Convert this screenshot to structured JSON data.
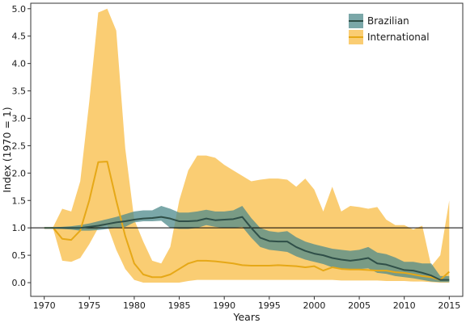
{
  "chart_data": {
    "type": "area",
    "xlabel": "Years",
    "ylabel": "Index (1970 = 1)",
    "xlim": [
      1968.5,
      2016.5
    ],
    "ylim": [
      -0.25,
      5.1
    ],
    "xticks": [
      1970,
      1975,
      1980,
      1985,
      1990,
      1995,
      2000,
      2005,
      2010,
      2015
    ],
    "yticks": [
      0.0,
      0.5,
      1.0,
      1.5,
      2.0,
      2.5,
      3.0,
      3.5,
      4.0,
      4.5,
      5.0
    ],
    "ytick_labels": [
      "0.0",
      "0.5",
      "1.0",
      "1.5",
      "2.0",
      "2.5",
      "3.0",
      "3.5",
      "4.0",
      "4.5",
      "5.0"
    ],
    "reference_line": 1.0,
    "grid": false,
    "legend_position": "top-right",
    "series": [
      {
        "name": "Brazilian",
        "line_color": "#2f4f48",
        "fill_color": "#4e8a8b",
        "x": [
          1970,
          1971,
          1972,
          1973,
          1974,
          1975,
          1976,
          1977,
          1978,
          1979,
          1980,
          1981,
          1982,
          1983,
          1984,
          1985,
          1986,
          1987,
          1988,
          1989,
          1990,
          1991,
          1992,
          1993,
          1994,
          1995,
          1996,
          1997,
          1998,
          1999,
          2000,
          2001,
          2002,
          2003,
          2004,
          2005,
          2006,
          2007,
          2008,
          2009,
          2010,
          2011,
          2012,
          2013,
          2014,
          2015
        ],
        "values": [
          1.0,
          1.0,
          1.0,
          1.0,
          1.0,
          1.02,
          1.04,
          1.07,
          1.1,
          1.12,
          1.15,
          1.17,
          1.18,
          1.2,
          1.17,
          1.12,
          1.12,
          1.13,
          1.17,
          1.14,
          1.15,
          1.16,
          1.2,
          1.0,
          0.82,
          0.76,
          0.75,
          0.75,
          0.65,
          0.58,
          0.53,
          0.5,
          0.45,
          0.42,
          0.4,
          0.42,
          0.45,
          0.35,
          0.33,
          0.28,
          0.23,
          0.22,
          0.18,
          0.13,
          0.05,
          0.05
        ],
        "lower": [
          1.0,
          0.99,
          0.98,
          0.97,
          0.95,
          0.95,
          0.96,
          0.98,
          1.0,
          1.02,
          1.1,
          1.12,
          1.12,
          1.13,
          1.0,
          0.98,
          0.98,
          1.0,
          1.05,
          1.02,
          1.0,
          1.0,
          1.02,
          0.82,
          0.65,
          0.6,
          0.58,
          0.56,
          0.48,
          0.42,
          0.38,
          0.34,
          0.28,
          0.26,
          0.24,
          0.25,
          0.26,
          0.18,
          0.16,
          0.12,
          0.1,
          0.08,
          0.05,
          0.02,
          0.01,
          0.01
        ],
        "upper": [
          1.0,
          1.01,
          1.02,
          1.03,
          1.05,
          1.08,
          1.12,
          1.16,
          1.2,
          1.25,
          1.3,
          1.32,
          1.32,
          1.4,
          1.35,
          1.28,
          1.28,
          1.3,
          1.33,
          1.3,
          1.3,
          1.32,
          1.4,
          1.18,
          1.0,
          0.94,
          0.92,
          0.94,
          0.83,
          0.75,
          0.7,
          0.66,
          0.62,
          0.6,
          0.58,
          0.6,
          0.65,
          0.55,
          0.52,
          0.46,
          0.38,
          0.38,
          0.35,
          0.35,
          0.12,
          0.12
        ]
      },
      {
        "name": "International",
        "line_color": "#e6a817",
        "fill_color": "#f9c45a",
        "x": [
          1970,
          1971,
          1972,
          1973,
          1974,
          1975,
          1976,
          1977,
          1978,
          1979,
          1980,
          1981,
          1982,
          1983,
          1984,
          1985,
          1986,
          1987,
          1988,
          1989,
          1990,
          1991,
          1992,
          1993,
          1994,
          1995,
          1996,
          1997,
          1998,
          1999,
          2000,
          2001,
          2002,
          2003,
          2004,
          2005,
          2006,
          2007,
          2008,
          2009,
          2010,
          2011,
          2012,
          2013,
          2014,
          2015
        ],
        "values": [
          1.0,
          1.0,
          0.8,
          0.78,
          0.95,
          1.5,
          2.2,
          2.21,
          1.5,
          0.85,
          0.35,
          0.15,
          0.1,
          0.1,
          0.15,
          0.25,
          0.35,
          0.4,
          0.4,
          0.39,
          0.37,
          0.35,
          0.32,
          0.31,
          0.31,
          0.31,
          0.32,
          0.31,
          0.3,
          0.28,
          0.3,
          0.22,
          0.28,
          0.25,
          0.24,
          0.24,
          0.23,
          0.22,
          0.22,
          0.19,
          0.18,
          0.15,
          0.12,
          0.1,
          0.05,
          0.2
        ],
        "lower": [
          1.0,
          0.98,
          0.4,
          0.38,
          0.45,
          0.7,
          1.0,
          1.05,
          0.6,
          0.25,
          0.05,
          0.0,
          0.0,
          0.0,
          0.0,
          0.0,
          0.03,
          0.05,
          0.05,
          0.05,
          0.05,
          0.05,
          0.05,
          0.05,
          0.05,
          0.05,
          0.05,
          0.05,
          0.05,
          0.05,
          0.05,
          0.05,
          0.05,
          0.04,
          0.04,
          0.04,
          0.04,
          0.04,
          0.03,
          0.03,
          0.03,
          0.02,
          0.02,
          0.01,
          0.0,
          0.0
        ],
        "upper": [
          1.0,
          1.02,
          1.35,
          1.3,
          1.85,
          3.3,
          4.93,
          5.0,
          4.6,
          2.45,
          1.15,
          0.75,
          0.4,
          0.35,
          0.65,
          1.5,
          2.05,
          2.32,
          2.32,
          2.28,
          2.15,
          2.05,
          1.95,
          1.85,
          1.88,
          1.9,
          1.9,
          1.88,
          1.75,
          1.9,
          1.7,
          1.3,
          1.75,
          1.3,
          1.4,
          1.38,
          1.35,
          1.38,
          1.15,
          1.05,
          1.05,
          0.97,
          1.04,
          0.3,
          0.5,
          1.5
        ]
      }
    ]
  }
}
